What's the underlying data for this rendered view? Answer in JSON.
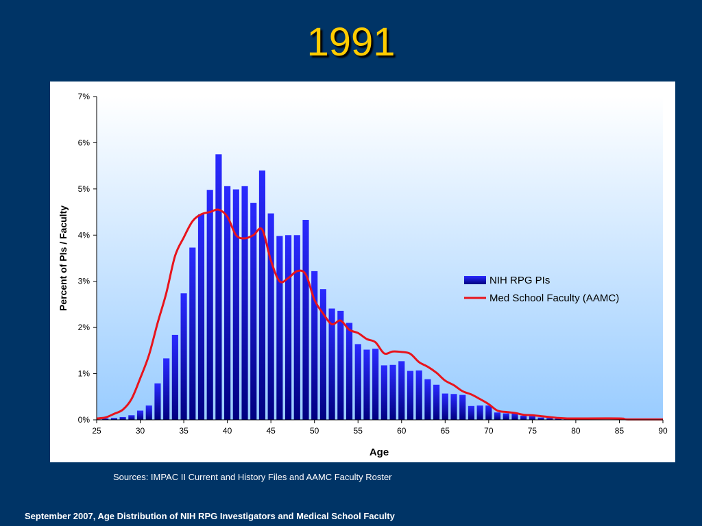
{
  "slide": {
    "title": "1991",
    "sources": "Sources:  IMPAC II Current and History Files and AAMC Faculty Roster",
    "footer": "September 2007, Age Distribution of NIH RPG Investigators and Medical School Faculty"
  },
  "colors": {
    "background": "#003466",
    "title": "#ffcc00",
    "bar_top": "#2a2aff",
    "bar_bottom": "#000080",
    "line": "#e8141c",
    "plot_top": "#ffffff",
    "plot_bottom": "#99ccff"
  },
  "chart_data": {
    "type": "bar",
    "xlabel": "Age",
    "ylabel": "Percent of PIs / Faculty",
    "xlim": [
      25,
      90
    ],
    "ylim": [
      0,
      7
    ],
    "x_ticks": [
      "25",
      "30",
      "35",
      "40",
      "45",
      "50",
      "55",
      "60",
      "65",
      "70",
      "75",
      "80",
      "85",
      "90"
    ],
    "y_ticks": [
      "0%",
      "1%",
      "2%",
      "3%",
      "4%",
      "5%",
      "6%",
      "7%"
    ],
    "legend_position": "right",
    "series": [
      {
        "name": "NIH RPG PIs",
        "kind": "bar",
        "x": [
          26,
          27,
          28,
          29,
          30,
          31,
          32,
          33,
          34,
          35,
          36,
          37,
          38,
          39,
          40,
          41,
          42,
          43,
          44,
          45,
          46,
          47,
          48,
          49,
          50,
          51,
          52,
          53,
          54,
          55,
          56,
          57,
          58,
          59,
          60,
          61,
          62,
          63,
          64,
          65,
          66,
          67,
          68,
          69,
          70,
          71,
          72,
          73,
          74,
          75,
          76,
          77,
          78,
          79,
          80
        ],
        "values": [
          0.03,
          0.04,
          0.06,
          0.1,
          0.2,
          0.31,
          0.79,
          1.33,
          1.84,
          2.74,
          3.73,
          4.45,
          4.98,
          5.75,
          5.06,
          4.99,
          5.06,
          4.7,
          5.4,
          4.47,
          3.98,
          4.0,
          4.0,
          4.33,
          3.22,
          2.83,
          2.41,
          2.36,
          2.1,
          1.64,
          1.52,
          1.54,
          1.18,
          1.19,
          1.27,
          1.06,
          1.07,
          0.88,
          0.76,
          0.57,
          0.56,
          0.54,
          0.3,
          0.31,
          0.31,
          0.16,
          0.14,
          0.14,
          0.09,
          0.08,
          0.05,
          0.04,
          0.03,
          0.02,
          0.01
        ]
      },
      {
        "name": "Med School Faculty (AAMC)",
        "kind": "line",
        "x": [
          25,
          26,
          27,
          28,
          29,
          30,
          31,
          32,
          33,
          34,
          35,
          36,
          37,
          38,
          39,
          40,
          41,
          42,
          43,
          44,
          45,
          46,
          47,
          48,
          49,
          50,
          51,
          52,
          53,
          54,
          55,
          56,
          57,
          58,
          59,
          60,
          61,
          62,
          63,
          64,
          65,
          66,
          67,
          68,
          69,
          70,
          71,
          72,
          73,
          74,
          75,
          76,
          77,
          78,
          79,
          80,
          85,
          86,
          90
        ],
        "values": [
          0.03,
          0.05,
          0.13,
          0.22,
          0.45,
          0.9,
          1.4,
          2.1,
          2.75,
          3.55,
          3.95,
          4.3,
          4.45,
          4.5,
          4.55,
          4.4,
          4.0,
          3.93,
          4.0,
          4.12,
          3.45,
          3.0,
          3.07,
          3.22,
          3.15,
          2.6,
          2.3,
          2.07,
          2.15,
          1.95,
          1.88,
          1.75,
          1.68,
          1.44,
          1.48,
          1.47,
          1.43,
          1.25,
          1.15,
          1.02,
          0.85,
          0.75,
          0.62,
          0.55,
          0.45,
          0.34,
          0.2,
          0.17,
          0.15,
          0.11,
          0.1,
          0.08,
          0.06,
          0.04,
          0.03,
          0.03,
          0.03,
          0.01,
          0.01
        ]
      }
    ]
  }
}
